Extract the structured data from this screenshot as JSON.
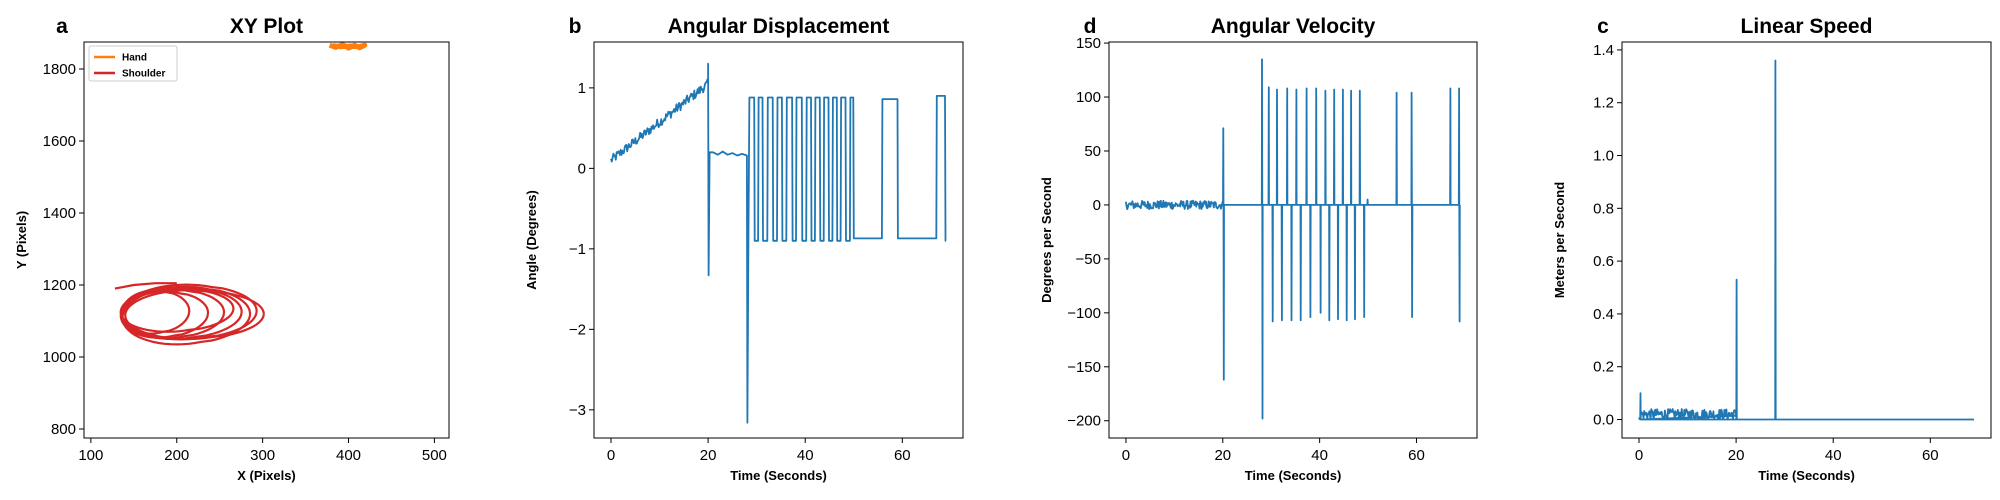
{
  "chart_data": [
    {
      "type": "line",
      "panel_letter": "a",
      "title": "XY Plot",
      "xlabel": "X (Pixels)",
      "ylabel": "Y (Pixels)",
      "xlim": [
        92,
        517
      ],
      "ylim": [
        775,
        1875
      ],
      "xticks": [
        100,
        200,
        300,
        400,
        500
      ],
      "yticks": [
        800,
        1000,
        1200,
        1400,
        1600,
        1800
      ],
      "grid": false,
      "legend_position": "top-left",
      "series": [
        {
          "name": "Hand",
          "color": "#ff7f0e",
          "points": [
            [
              378,
              1866
            ],
            [
              385,
              1860
            ],
            [
              393,
              1868
            ],
            [
              400,
              1858
            ],
            [
              407,
              1866
            ],
            [
              413,
              1859
            ],
            [
              419,
              1866
            ],
            [
              412,
              1862
            ],
            [
              402,
              1864
            ],
            [
              390,
              1862
            ],
            [
              382,
              1865
            ]
          ]
        },
        {
          "name": "Shoulder",
          "color": "#d62728",
          "loops": [
            {
              "cx": 172,
              "cy": 1125,
              "rx": 36,
              "ry": 60,
              "tilt": 0.2
            },
            {
              "cx": 182,
              "cy": 1118,
              "rx": 46,
              "ry": 64,
              "tilt": 0.3
            },
            {
              "cx": 190,
              "cy": 1120,
              "rx": 55,
              "ry": 68,
              "tilt": 0.25
            },
            {
              "cx": 200,
              "cy": 1122,
              "rx": 64,
              "ry": 72,
              "tilt": 0.2
            },
            {
              "cx": 208,
              "cy": 1125,
              "rx": 72,
              "ry": 76,
              "tilt": 0.15
            },
            {
              "cx": 214,
              "cy": 1118,
              "rx": 74,
              "ry": 68,
              "tilt": 0.1
            },
            {
              "cx": 195,
              "cy": 1130,
              "rx": 60,
              "ry": 60,
              "tilt": 0.3
            },
            {
              "cx": 205,
              "cy": 1115,
              "rx": 68,
              "ry": 80,
              "tilt": 0.25
            }
          ],
          "tail": [
            [
              128,
              1190
            ],
            [
              150,
              1200
            ],
            [
              175,
              1205
            ],
            [
              200,
              1205
            ]
          ]
        }
      ]
    },
    {
      "type": "line",
      "panel_letter": "b",
      "title": "Angular Displacement",
      "xlabel": "Time (Seconds)",
      "ylabel": "Angle (Degrees)",
      "xlim": [
        -3.5,
        72.5
      ],
      "ylim": [
        -3.35,
        1.57
      ],
      "xticks": [
        0,
        20,
        40,
        60
      ],
      "yticks": [
        -3,
        -2,
        -1,
        0,
        1
      ],
      "grid": false,
      "series": [
        {
          "name": "",
          "color": "#1f77b4",
          "noisy_segments": [
            {
              "t0": 0,
              "t1": 20,
              "v0": 0.1,
              "v1": 1.05,
              "noise": 0.06,
              "n": 120
            }
          ],
          "points": [
            [
              20,
              1.3
            ],
            [
              20.1,
              -1.33
            ],
            [
              20.3,
              0.2
            ],
            [
              21,
              0.2
            ],
            [
              22,
              0.17
            ],
            [
              23,
              0.21
            ],
            [
              24,
              0.17
            ],
            [
              25,
              0.19
            ],
            [
              26,
              0.16
            ],
            [
              27,
              0.18
            ],
            [
              28,
              0.16
            ],
            [
              28.1,
              -3.16
            ],
            [
              28.3,
              -0.9
            ],
            [
              28.5,
              0.88
            ],
            [
              29.5,
              0.88
            ],
            [
              29.6,
              -0.9
            ],
            [
              30.3,
              -0.9
            ],
            [
              30.4,
              0.88
            ],
            [
              31.2,
              0.88
            ],
            [
              31.3,
              -0.9
            ],
            [
              32.2,
              -0.9
            ],
            [
              32.3,
              0.88
            ],
            [
              33.3,
              0.88
            ],
            [
              33.4,
              -0.9
            ],
            [
              34.2,
              -0.9
            ],
            [
              34.3,
              0.88
            ],
            [
              35.2,
              0.88
            ],
            [
              35.3,
              -0.9
            ],
            [
              36.1,
              -0.9
            ],
            [
              36.2,
              0.88
            ],
            [
              37.3,
              0.88
            ],
            [
              37.4,
              -0.9
            ],
            [
              38.1,
              -0.9
            ],
            [
              38.2,
              0.88
            ],
            [
              39.3,
              0.88
            ],
            [
              39.4,
              -0.9
            ],
            [
              40.2,
              -0.9
            ],
            [
              40.3,
              0.88
            ],
            [
              41.2,
              0.88
            ],
            [
              41.3,
              -0.9
            ],
            [
              42.0,
              -0.9
            ],
            [
              42.1,
              0.88
            ],
            [
              43.0,
              0.88
            ],
            [
              43.1,
              -0.9
            ],
            [
              43.8,
              -0.9
            ],
            [
              43.9,
              0.88
            ],
            [
              44.8,
              0.88
            ],
            [
              44.9,
              -0.9
            ],
            [
              45.6,
              -0.9
            ],
            [
              45.7,
              0.88
            ],
            [
              46.5,
              0.88
            ],
            [
              46.6,
              -0.9
            ],
            [
              47.3,
              -0.9
            ],
            [
              47.4,
              0.88
            ],
            [
              48.3,
              0.88
            ],
            [
              48.4,
              -0.9
            ],
            [
              49.2,
              -0.9
            ],
            [
              49.3,
              0.88
            ],
            [
              49.9,
              0.88
            ],
            [
              50.0,
              -0.87
            ],
            [
              55.8,
              -0.87
            ],
            [
              55.9,
              0.86
            ],
            [
              59.0,
              0.86
            ],
            [
              59.1,
              -0.87
            ],
            [
              67.0,
              -0.87
            ],
            [
              67.1,
              0.9
            ],
            [
              68.8,
              0.9
            ],
            [
              68.9,
              -0.9
            ],
            [
              69.0,
              -0.9
            ]
          ]
        }
      ]
    },
    {
      "type": "line",
      "panel_letter": "d",
      "title": "Angular Velocity",
      "xlabel": "Time (Seconds)",
      "ylabel": "Degrees per Second",
      "xlim": [
        -3.5,
        72.5
      ],
      "ylim": [
        -216,
        151
      ],
      "xticks": [
        0,
        20,
        40,
        60
      ],
      "yticks": [
        -200,
        -150,
        -100,
        -50,
        0,
        50,
        100,
        150
      ],
      "grid": false,
      "series": [
        {
          "name": "",
          "color": "#1f77b4",
          "noisy_segments": [
            {
              "t0": 0,
              "t1": 20,
              "v0": 0,
              "v1": 0,
              "noise": 4,
              "n": 150
            }
          ],
          "spikes": [
            [
              20.1,
              71
            ],
            [
              20.2,
              -162
            ],
            [
              28.1,
              135
            ],
            [
              28.2,
              -198
            ],
            [
              29.5,
              109
            ],
            [
              30.3,
              -108
            ],
            [
              31.2,
              107
            ],
            [
              32.2,
              -107
            ],
            [
              33.3,
              108
            ],
            [
              34.2,
              -107
            ],
            [
              35.2,
              107
            ],
            [
              36.1,
              -107
            ],
            [
              37.3,
              108
            ],
            [
              38.1,
              -104
            ],
            [
              39.3,
              108
            ],
            [
              40.2,
              -100
            ],
            [
              41.2,
              106
            ],
            [
              42.0,
              -107
            ],
            [
              43.0,
              107
            ],
            [
              43.8,
              -106
            ],
            [
              44.8,
              107
            ],
            [
              45.6,
              -107
            ],
            [
              46.5,
              106
            ],
            [
              47.3,
              -106
            ],
            [
              48.3,
              106
            ],
            [
              49.2,
              -104
            ],
            [
              49.9,
              5
            ],
            [
              55.9,
              104
            ],
            [
              59.0,
              104
            ],
            [
              59.1,
              -104
            ],
            [
              67.0,
              108
            ],
            [
              68.8,
              108
            ],
            [
              68.9,
              -108
            ]
          ],
          "baseline_end": 69
        }
      ]
    },
    {
      "type": "line",
      "panel_letter": "c",
      "title": "Linear Speed",
      "xlabel": "Time (Seconds)",
      "ylabel": "Meters per Second",
      "xlim": [
        -3.5,
        72.5
      ],
      "ylim": [
        -0.07,
        1.43
      ],
      "xticks": [
        0,
        20,
        40,
        60
      ],
      "yticks": [
        0.0,
        0.2,
        0.4,
        0.6,
        0.8,
        1.0,
        1.2,
        1.4
      ],
      "grid": false,
      "series": [
        {
          "name": "",
          "color": "#1f77b4",
          "noisy_segments": [
            {
              "t0": 0,
              "t1": 20,
              "v0": 0.02,
              "v1": 0.02,
              "noise": 0.02,
              "n": 150
            }
          ],
          "spikes": [
            [
              0.3,
              0.1
            ],
            [
              20.1,
              0.53
            ],
            [
              28.1,
              1.36
            ]
          ],
          "baseline_end": 69
        }
      ]
    }
  ]
}
